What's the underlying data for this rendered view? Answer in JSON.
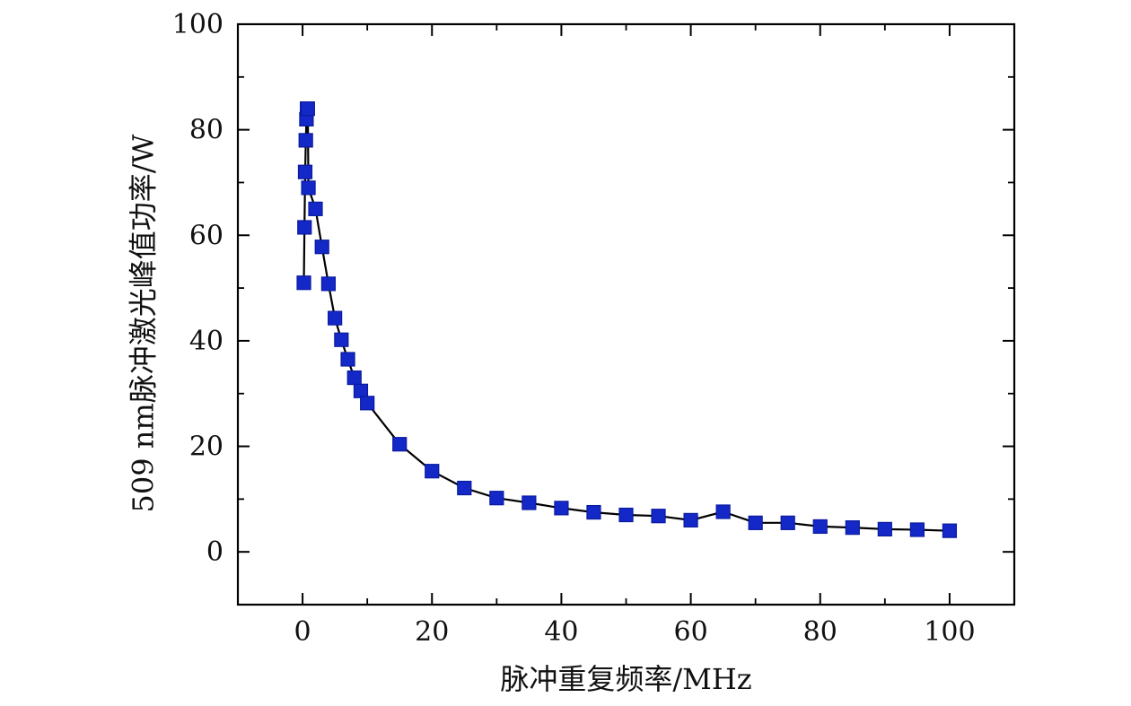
{
  "chart_data": {
    "type": "line",
    "xlabel": "脉冲重复频率/MHz",
    "ylabel": "509 nm脉冲激光峰值功率/W",
    "xlim": [
      -10,
      110
    ],
    "ylim": [
      -10,
      100
    ],
    "x_ticks": [
      0,
      20,
      40,
      60,
      80,
      100
    ],
    "y_ticks": [
      0,
      20,
      40,
      60,
      80,
      100
    ],
    "grid": false,
    "marker": "square",
    "colors": {
      "marker_fill": "#1428c8",
      "marker_edge": "#0a1a9e",
      "line": "#000000",
      "axis": "#000000"
    },
    "series": [
      {
        "x": [
          0.2,
          0.3,
          0.4,
          0.5,
          0.6,
          0.7,
          0.8,
          0.9,
          2,
          3,
          4,
          5,
          6,
          7,
          8,
          9,
          10,
          15,
          20,
          25,
          30,
          35,
          40,
          45,
          50,
          55,
          60,
          65,
          70,
          75,
          80,
          85,
          90,
          95,
          100
        ],
        "y": [
          51,
          61.5,
          72,
          78,
          82,
          84,
          84,
          69,
          65,
          57.8,
          50.8,
          44.3,
          40.2,
          36.5,
          33,
          30.5,
          28.2,
          20.4,
          15.3,
          12.1,
          10.2,
          9.3,
          8.3,
          7.5,
          7.0,
          6.8,
          6.0,
          7.6,
          5.5,
          5.5,
          4.8,
          4.6,
          4.3,
          4.2,
          4.0
        ]
      }
    ]
  }
}
